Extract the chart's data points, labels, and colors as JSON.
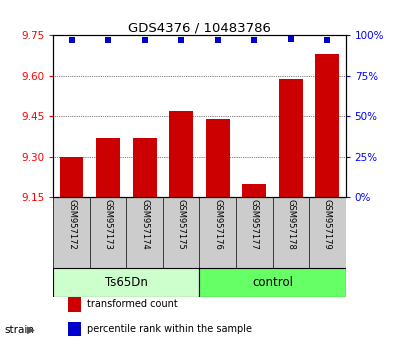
{
  "title": "GDS4376 / 10483786",
  "samples": [
    "GSM957172",
    "GSM957173",
    "GSM957174",
    "GSM957175",
    "GSM957176",
    "GSM957177",
    "GSM957178",
    "GSM957179"
  ],
  "bar_values": [
    9.3,
    9.37,
    9.37,
    9.47,
    9.44,
    9.2,
    9.59,
    9.68
  ],
  "percentile_values": [
    97,
    97,
    97,
    97,
    97,
    97,
    98,
    97
  ],
  "ylim_left": [
    9.15,
    9.75
  ],
  "yticks_left": [
    9.15,
    9.3,
    9.45,
    9.6,
    9.75
  ],
  "ylim_right": [
    0,
    100
  ],
  "yticks_right": [
    0,
    25,
    50,
    75,
    100
  ],
  "ytick_labels_right": [
    "0%",
    "25%",
    "50%",
    "75%",
    "100%"
  ],
  "bar_color": "#cc0000",
  "scatter_color": "#0000cc",
  "bar_width": 0.65,
  "groups": [
    {
      "label": "Ts65Dn",
      "indices": [
        0,
        1,
        2,
        3
      ],
      "color": "#ccffcc"
    },
    {
      "label": "control",
      "indices": [
        4,
        5,
        6,
        7
      ],
      "color": "#66ff66"
    }
  ],
  "legend_items": [
    {
      "color": "#cc0000",
      "label": "transformed count"
    },
    {
      "color": "#0000cc",
      "label": "percentile rank within the sample"
    }
  ],
  "background_color": "#ffffff",
  "sample_bg_color": "#cccccc",
  "strain_label": "strain"
}
